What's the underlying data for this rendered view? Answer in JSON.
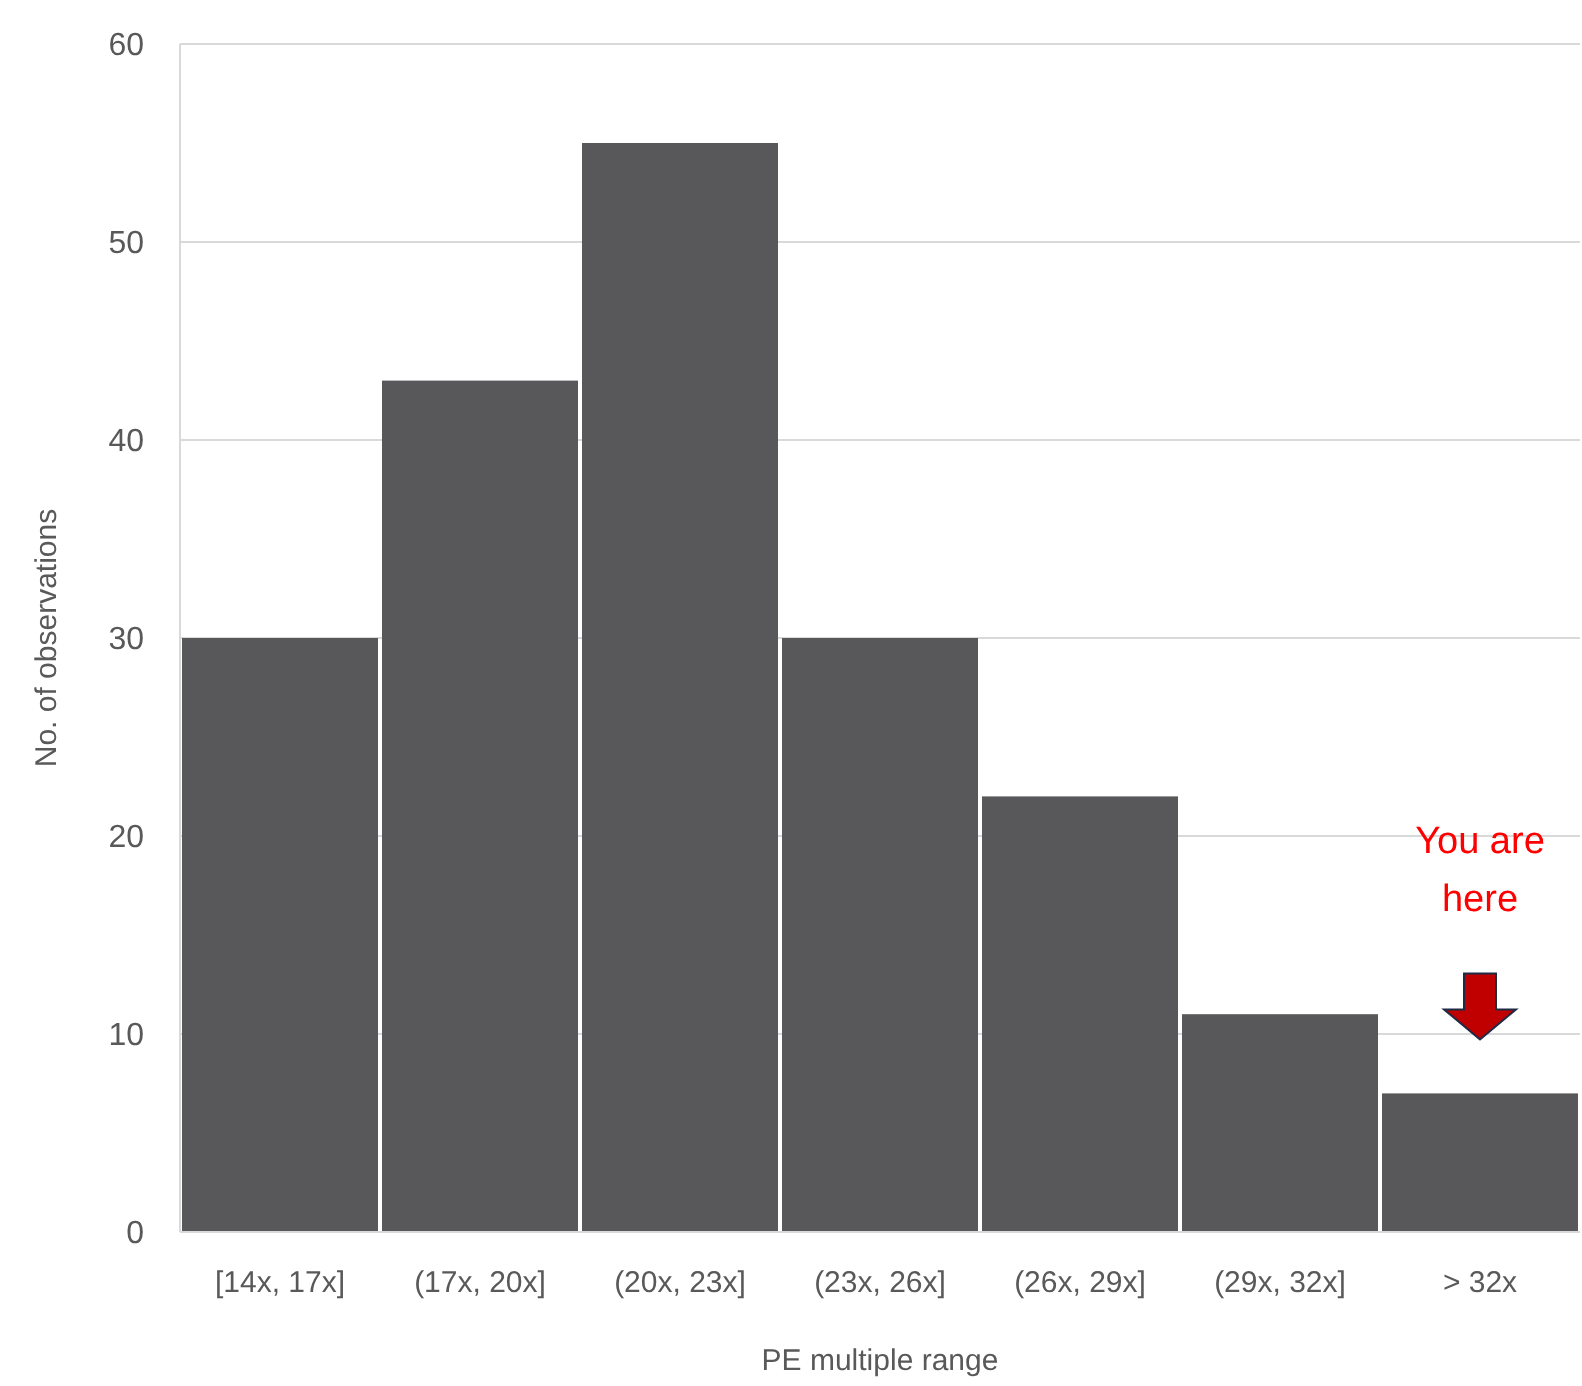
{
  "chart_data": {
    "type": "bar",
    "xlabel": "PE multiple range",
    "ylabel": "No. of observations",
    "categories": [
      "[14x, 17x]",
      "(17x, 20x]",
      "(20x, 23x]",
      "(23x, 26x]",
      "(26x, 29x]",
      "(29x, 32x]",
      "> 32x"
    ],
    "values": [
      30,
      43,
      55,
      30,
      22,
      11,
      7
    ],
    "color": "#58585a",
    "ylim": [
      0,
      60
    ],
    "yticks": [
      0,
      10,
      20,
      30,
      40,
      50,
      60
    ],
    "grid": "y",
    "annotations": [
      "You are here"
    ]
  }
}
